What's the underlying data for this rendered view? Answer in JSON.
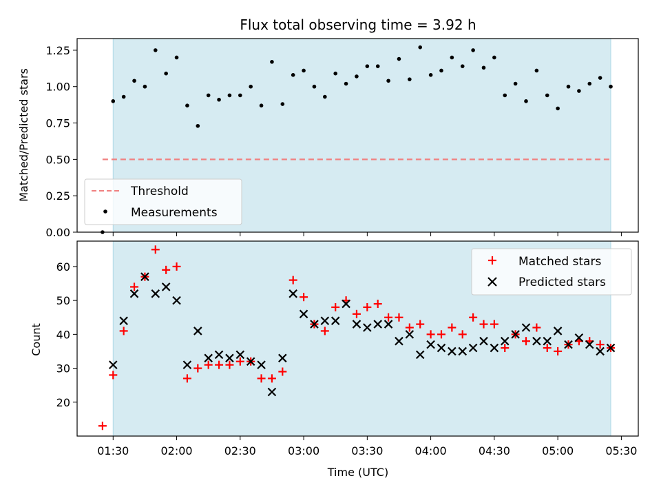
{
  "chart_data": [
    {
      "type": "scatter",
      "title": "Flux total observing time = 3.92 h",
      "xlabel": "",
      "ylabel": "Matched/Predicted stars",
      "xlim": [
        "01:13",
        "05:38"
      ],
      "ylim": [
        0,
        1.33
      ],
      "yticks": [
        0.0,
        0.25,
        0.5,
        0.75,
        1.0,
        1.25
      ],
      "ytick_labels": [
        "0.00",
        "0.25",
        "0.50",
        "0.75",
        "1.00",
        "1.25"
      ],
      "observing_span": [
        "01:30",
        "05:25"
      ],
      "threshold": {
        "name": "Threshold",
        "value": 0.5,
        "x": [
          "01:25",
          "05:25"
        ],
        "color": "#f08080"
      },
      "legend": {
        "position": "lower-left",
        "entries": [
          "Threshold",
          "Measurements"
        ]
      },
      "series": [
        {
          "name": "Measurements",
          "color": "#000000",
          "x": [
            "01:25",
            "01:30",
            "01:35",
            "01:40",
            "01:45",
            "01:50",
            "01:55",
            "02:00",
            "02:05",
            "02:10",
            "02:15",
            "02:20",
            "02:25",
            "02:30",
            "02:35",
            "02:40",
            "02:45",
            "02:50",
            "02:55",
            "03:00",
            "03:05",
            "03:10",
            "03:15",
            "03:20",
            "03:25",
            "03:30",
            "03:35",
            "03:40",
            "03:45",
            "03:50",
            "03:55",
            "04:00",
            "04:05",
            "04:10",
            "04:15",
            "04:20",
            "04:25",
            "04:30",
            "04:35",
            "04:40",
            "04:45",
            "04:50",
            "04:55",
            "05:00",
            "05:05",
            "05:10",
            "05:15",
            "05:20",
            "05:25"
          ],
          "y": [
            0.0,
            0.9,
            0.93,
            1.04,
            1.0,
            1.25,
            1.09,
            1.2,
            0.87,
            0.73,
            0.94,
            0.91,
            0.94,
            0.94,
            1.0,
            0.87,
            1.17,
            0.88,
            1.08,
            1.11,
            1.0,
            0.93,
            1.09,
            1.02,
            1.07,
            1.14,
            1.14,
            1.04,
            1.19,
            1.05,
            1.27,
            1.08,
            1.11,
            1.2,
            1.14,
            1.25,
            1.13,
            1.2,
            0.94,
            1.02,
            0.9,
            1.11,
            0.94,
            0.85,
            1.0,
            0.97,
            1.02,
            1.06,
            1.0
          ]
        }
      ]
    },
    {
      "type": "scatter",
      "title": "",
      "xlabel": "Time (UTC)",
      "ylabel": "Count",
      "xlim": [
        "01:13",
        "05:38"
      ],
      "ylim": [
        10,
        67.5
      ],
      "yticks": [
        20,
        30,
        40,
        50,
        60
      ],
      "xticks": [
        "01:30",
        "02:00",
        "02:30",
        "03:00",
        "03:30",
        "04:00",
        "04:30",
        "05:00",
        "05:30"
      ],
      "observing_span": [
        "01:30",
        "05:25"
      ],
      "legend": {
        "position": "top-right",
        "entries": [
          "Matched stars",
          "Predicted stars"
        ]
      },
      "series": [
        {
          "name": "Matched stars",
          "marker": "+",
          "color": "#ff0000",
          "x": [
            "01:25",
            "01:30",
            "01:35",
            "01:40",
            "01:45",
            "01:50",
            "01:55",
            "02:00",
            "02:05",
            "02:10",
            "02:15",
            "02:20",
            "02:25",
            "02:30",
            "02:35",
            "02:40",
            "02:45",
            "02:50",
            "02:55",
            "03:00",
            "03:05",
            "03:10",
            "03:15",
            "03:20",
            "03:25",
            "03:30",
            "03:35",
            "03:40",
            "03:45",
            "03:50",
            "03:55",
            "04:00",
            "04:05",
            "04:10",
            "04:15",
            "04:20",
            "04:25",
            "04:30",
            "04:35",
            "04:40",
            "04:45",
            "04:50",
            "04:55",
            "05:00",
            "05:05",
            "05:10",
            "05:15",
            "05:20",
            "05:25"
          ],
          "y": [
            13,
            28,
            41,
            54,
            57,
            65,
            59,
            60,
            27,
            30,
            31,
            31,
            31,
            32,
            32,
            27,
            27,
            29,
            56,
            51,
            43,
            41,
            48,
            50,
            46,
            48,
            49,
            45,
            45,
            42,
            43,
            40,
            40,
            42,
            40,
            45,
            43,
            43,
            36,
            40,
            38,
            42,
            36,
            35,
            37,
            38,
            38,
            37,
            36
          ]
        },
        {
          "name": "Predicted stars",
          "marker": "x",
          "color": "#000000",
          "x": [
            "01:30",
            "01:35",
            "01:40",
            "01:45",
            "01:50",
            "01:55",
            "02:00",
            "02:05",
            "02:10",
            "02:15",
            "02:20",
            "02:25",
            "02:30",
            "02:35",
            "02:40",
            "02:45",
            "02:50",
            "02:55",
            "03:00",
            "03:05",
            "03:10",
            "03:15",
            "03:20",
            "03:25",
            "03:30",
            "03:35",
            "03:40",
            "03:45",
            "03:50",
            "03:55",
            "04:00",
            "04:05",
            "04:10",
            "04:15",
            "04:20",
            "04:25",
            "04:30",
            "04:35",
            "04:40",
            "04:45",
            "04:50",
            "04:55",
            "05:00",
            "05:05",
            "05:10",
            "05:15",
            "05:20",
            "05:25"
          ],
          "y": [
            31,
            44,
            52,
            57,
            52,
            54,
            50,
            31,
            41,
            33,
            34,
            33,
            34,
            32,
            31,
            23,
            33,
            52,
            46,
            43,
            44,
            44,
            49,
            43,
            42,
            43,
            43,
            38,
            40,
            34,
            37,
            36,
            35,
            35,
            36,
            38,
            36,
            38,
            40,
            42,
            38,
            38,
            41,
            37,
            39,
            37,
            35,
            36
          ]
        }
      ]
    }
  ]
}
